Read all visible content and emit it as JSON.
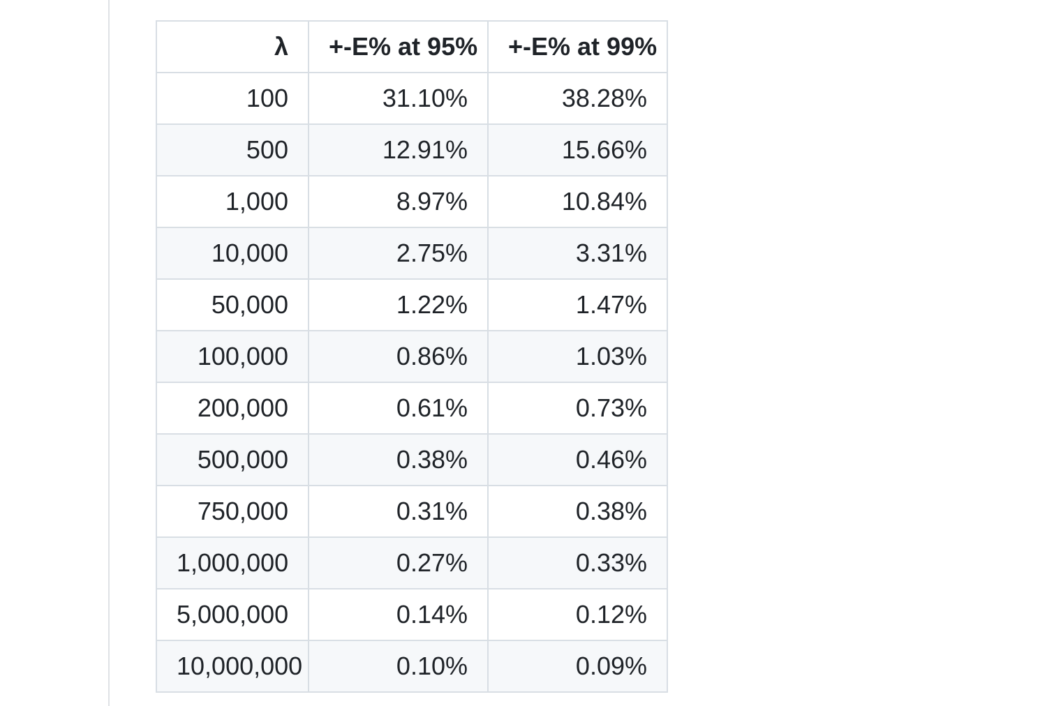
{
  "page": {
    "background_color": "#ffffff",
    "divider_color": "#dfe2e6"
  },
  "table": {
    "border_color": "#d8dee4",
    "stripe_color": "#f6f8fa",
    "text_color": "#1f2328",
    "alignment": "right",
    "columns": [
      {
        "label": "λ"
      },
      {
        "label": "+-E% at 95%"
      },
      {
        "label": "+-E% at 99%"
      }
    ],
    "rows": [
      {
        "lambda": "100",
        "e95": "31.10%",
        "e99": "38.28%"
      },
      {
        "lambda": "500",
        "e95": "12.91%",
        "e99": "15.66%"
      },
      {
        "lambda": "1,000",
        "e95": "8.97%",
        "e99": "10.84%"
      },
      {
        "lambda": "10,000",
        "e95": "2.75%",
        "e99": "3.31%"
      },
      {
        "lambda": "50,000",
        "e95": "1.22%",
        "e99": "1.47%"
      },
      {
        "lambda": "100,000",
        "e95": "0.86%",
        "e99": "1.03%"
      },
      {
        "lambda": "200,000",
        "e95": "0.61%",
        "e99": "0.73%"
      },
      {
        "lambda": "500,000",
        "e95": "0.38%",
        "e99": "0.46%"
      },
      {
        "lambda": "750,000",
        "e95": "0.31%",
        "e99": "0.38%"
      },
      {
        "lambda": "1,000,000",
        "e95": "0.27%",
        "e99": "0.33%"
      },
      {
        "lambda": "5,000,000",
        "e95": "0.14%",
        "e99": "0.12%"
      },
      {
        "lambda": "10,000,000",
        "e95": "0.10%",
        "e99": "0.09%"
      }
    ]
  }
}
